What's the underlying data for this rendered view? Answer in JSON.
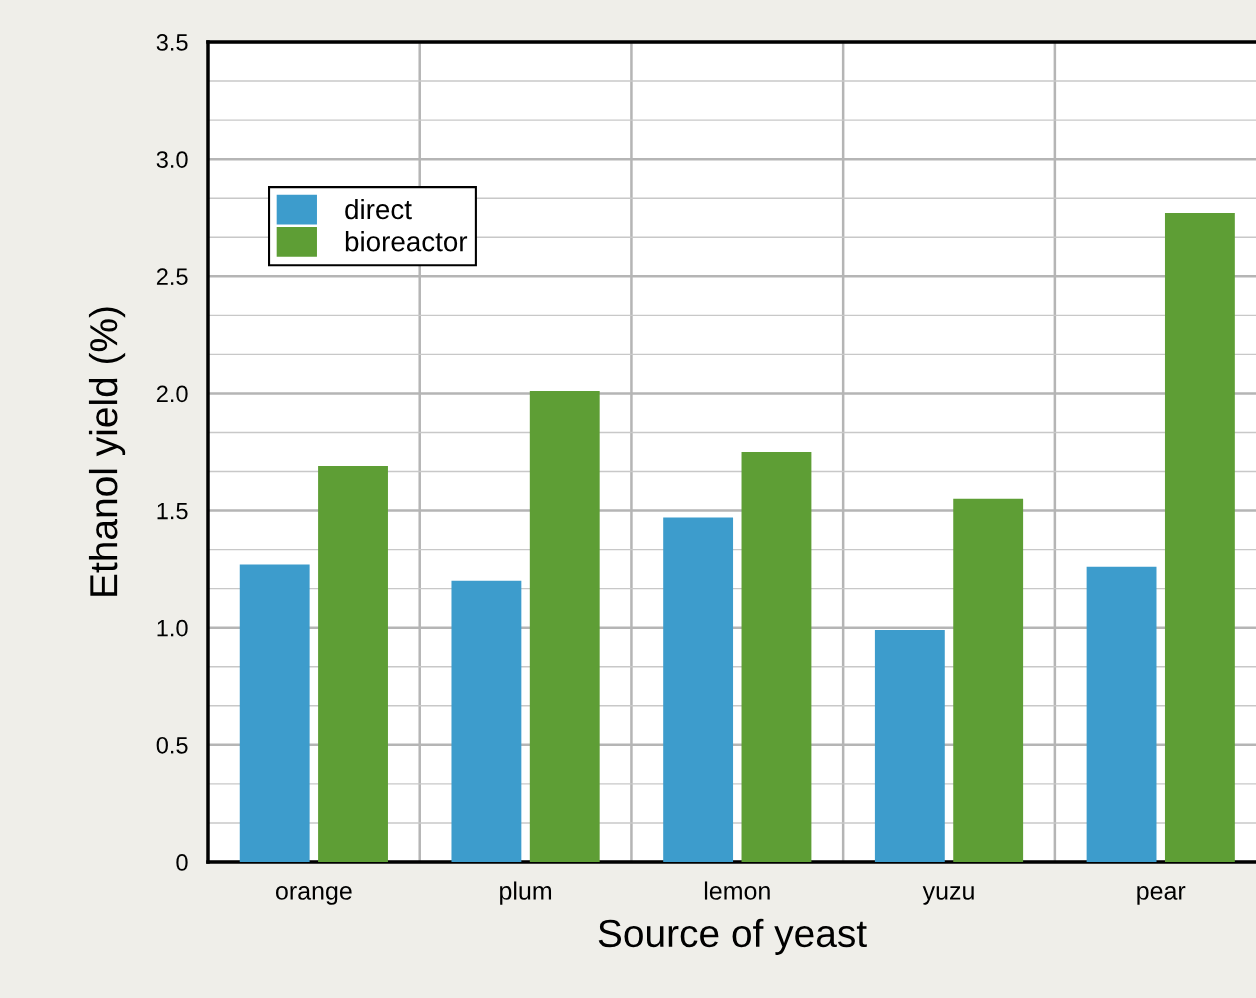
{
  "chart_data": {
    "type": "bar",
    "xlabel": "Source of yeast",
    "ylabel": "Ethanol yield (%)",
    "categories": [
      "orange",
      "plum",
      "lemon",
      "yuzu",
      "pear"
    ],
    "series": [
      {
        "name": "direct",
        "color": "#3d9ccc",
        "values": [
          1.27,
          1.2,
          1.47,
          0.99,
          1.26
        ]
      },
      {
        "name": "bioreactor",
        "color": "#5e9e35",
        "values": [
          1.69,
          2.01,
          1.75,
          1.55,
          2.77
        ]
      }
    ],
    "ylim": [
      0,
      3.5
    ],
    "yticks": [
      {
        "value": 0,
        "label": "0"
      },
      0.5,
      {
        "value": 1,
        "label": "1.0"
      },
      1.5,
      {
        "value": 2,
        "label": "2.0"
      },
      2.5,
      {
        "value": 3,
        "label": "3.0"
      },
      3.5
    ],
    "grid": true,
    "legend": "top left"
  }
}
